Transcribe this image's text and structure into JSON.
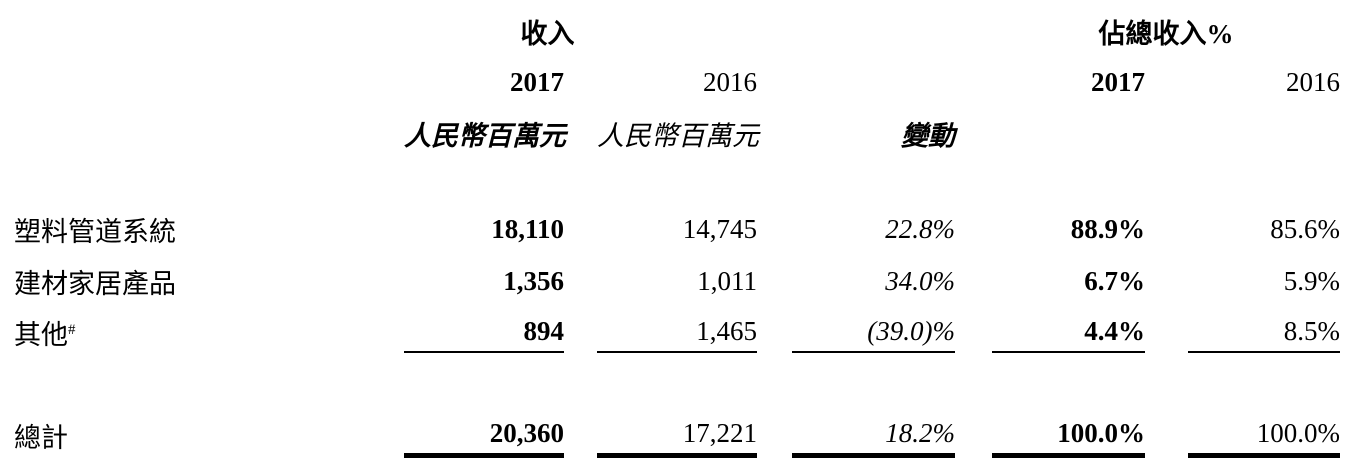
{
  "colors": {
    "text": "#000000",
    "background": "#ffffff",
    "rule": "#000000"
  },
  "table": {
    "group_headers": {
      "revenue": "收入",
      "pct_of_total": "佔總收入%"
    },
    "col_headers": {
      "rev_year_2017": "2017",
      "rev_year_2016": "2016",
      "unit_2017": "人民幣百萬元",
      "unit_2016": "人民幣百萬元",
      "change": "變動",
      "pct_year_2017": "2017",
      "pct_year_2016": "2016"
    },
    "rows": [
      {
        "label": "塑料管道系統",
        "label_sup": "",
        "rev_2017": "18,110",
        "rev_2016": "14,745",
        "change": "22.8%",
        "pct_2017": "88.9%",
        "pct_2016": "85.6%"
      },
      {
        "label": "建材家居產品",
        "label_sup": "",
        "rev_2017": "1,356",
        "rev_2016": "1,011",
        "change": "34.0%",
        "pct_2017": "6.7%",
        "pct_2016": "5.9%"
      },
      {
        "label": "其他",
        "label_sup": "#",
        "rev_2017": "894",
        "rev_2016": "1,465",
        "change": "(39.0)%",
        "pct_2017": "4.4%",
        "pct_2016": "8.5%"
      }
    ],
    "total": {
      "label": "總計",
      "rev_2017": "20,360",
      "rev_2016": "17,221",
      "change": "18.2%",
      "pct_2017": "100.0%",
      "pct_2016": "100.0%"
    }
  }
}
